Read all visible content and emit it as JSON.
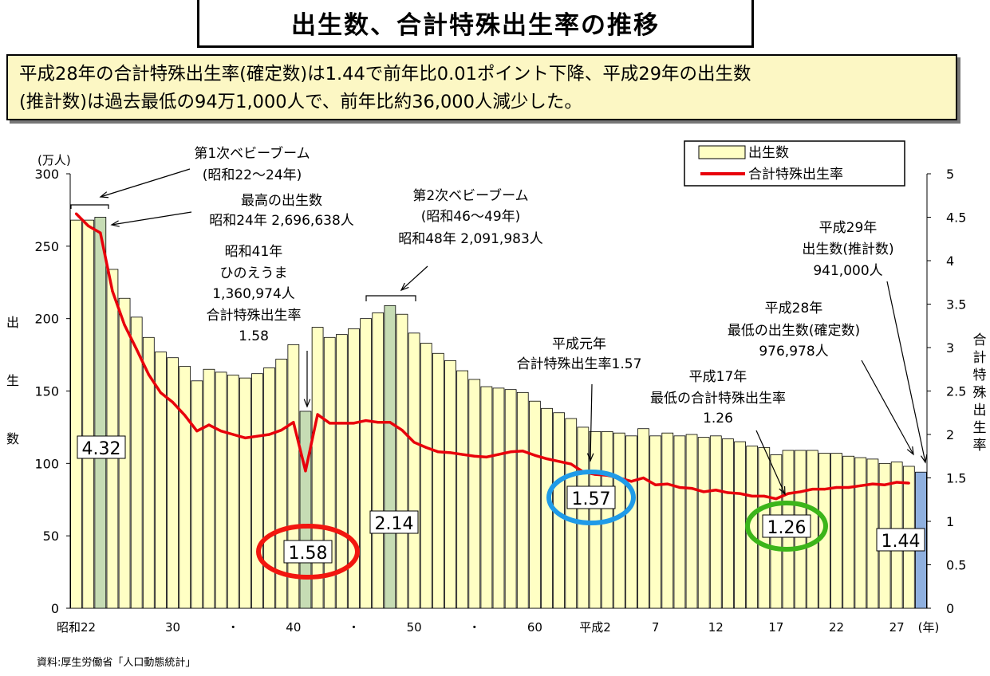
{
  "title": "出生数、合計特殊出生率の推移",
  "summary": {
    "line1": "平成28年の合計特殊出生率(確定数)は1.44で前年比0.01ポイント下降、平成29年の出生数",
    "line2": "(推計数)は過去最低の94万1,000人で、前年比約36,000人減少した。"
  },
  "source": "資料:厚生労働省「人口動態統計」",
  "colors": {
    "bar": "#ffffc4",
    "bar_highlight": "#c6dcb4",
    "bar_latest": "#8fb0df",
    "rate_line": "#e8000b",
    "circle_red": "#f2160f",
    "circle_blue": "#1f9be8",
    "circle_green": "#3cb51a"
  },
  "chart_data": {
    "type": "bar",
    "x_years": [
      "S22",
      "S23",
      "S24",
      "S25",
      "S26",
      "S27",
      "S28",
      "S29",
      "S30",
      "S31",
      "S32",
      "S33",
      "S34",
      "S35",
      "S36",
      "S37",
      "S38",
      "S39",
      "S40",
      "S41",
      "S42",
      "S43",
      "S44",
      "S45",
      "S46",
      "S47",
      "S48",
      "S49",
      "S50",
      "S51",
      "S52",
      "S53",
      "S54",
      "S55",
      "S56",
      "S57",
      "S58",
      "S59",
      "S60",
      "S61",
      "S62",
      "S63",
      "H1",
      "H2",
      "H3",
      "H4",
      "H5",
      "H6",
      "H7",
      "H8",
      "H9",
      "H10",
      "H11",
      "H12",
      "H13",
      "H14",
      "H15",
      "H16",
      "H17",
      "H18",
      "H19",
      "H20",
      "H21",
      "H22",
      "H23",
      "H24",
      "H25",
      "H26",
      "H27",
      "H28",
      "H29"
    ],
    "series": [
      {
        "name": "出生数",
        "axis": "left",
        "unit": "万人",
        "values": [
          268,
          268,
          270,
          234,
          214,
          201,
          187,
          177,
          173,
          167,
          157,
          165,
          163,
          161,
          159,
          162,
          166,
          172,
          182,
          136,
          194,
          187,
          189,
          193,
          200,
          204,
          209,
          203,
          190,
          183,
          176,
          171,
          164,
          158,
          153,
          152,
          151,
          149,
          143,
          138,
          135,
          131,
          125,
          122,
          122,
          121,
          119,
          124,
          119,
          121,
          119,
          120,
          118,
          119,
          117,
          115,
          112,
          111,
          106,
          109,
          109,
          109,
          107,
          107,
          105,
          104,
          103,
          100,
          101,
          98,
          94
        ]
      },
      {
        "name": "合計特殊出生率",
        "axis": "right",
        "values": [
          4.54,
          4.4,
          4.32,
          3.65,
          3.26,
          2.98,
          2.69,
          2.48,
          2.37,
          2.22,
          2.04,
          2.11,
          2.04,
          2.0,
          1.96,
          1.98,
          2.0,
          2.05,
          2.14,
          1.58,
          2.23,
          2.13,
          2.13,
          2.13,
          2.16,
          2.14,
          2.14,
          2.05,
          1.91,
          1.85,
          1.8,
          1.79,
          1.77,
          1.75,
          1.74,
          1.77,
          1.8,
          1.81,
          1.76,
          1.72,
          1.69,
          1.66,
          1.57,
          1.54,
          1.53,
          1.5,
          1.46,
          1.5,
          1.42,
          1.43,
          1.39,
          1.38,
          1.34,
          1.36,
          1.33,
          1.32,
          1.29,
          1.29,
          1.26,
          1.32,
          1.34,
          1.37,
          1.37,
          1.39,
          1.39,
          1.41,
          1.43,
          1.42,
          1.45,
          1.44
        ]
      }
    ],
    "highlight_bars": [
      "S24",
      "S41",
      "S48"
    ],
    "latest_bar": "H29",
    "y_left": {
      "label_chars": [
        "出",
        "生",
        "数"
      ],
      "unit": "(万人)",
      "range": [
        0,
        300
      ],
      "ticks": [
        "0",
        "50",
        "100",
        "150",
        "200",
        "250",
        "300"
      ]
    },
    "y_right": {
      "label_chars": [
        "合",
        "計",
        "特",
        "殊",
        "出",
        "生",
        "率"
      ],
      "range": [
        0,
        5
      ],
      "ticks": [
        "0",
        "0.5",
        "1",
        "1.5",
        "2",
        "2.5",
        "3",
        "3.5",
        "4",
        "4.5",
        "5"
      ]
    },
    "x_ticks": [
      {
        "label": "昭和22",
        "at": "S22"
      },
      {
        "label": "30",
        "at": "S30"
      },
      {
        "label": "・",
        "at": "S35"
      },
      {
        "label": "40",
        "at": "S40"
      },
      {
        "label": "・",
        "at": "S45"
      },
      {
        "label": "50",
        "at": "S50"
      },
      {
        "label": "・",
        "at": "S55"
      },
      {
        "label": "60",
        "at": "S60"
      },
      {
        "label": "平成2",
        "at": "H2"
      },
      {
        "label": "7",
        "at": "H7"
      },
      {
        "label": "12",
        "at": "H12"
      },
      {
        "label": "17",
        "at": "H17"
      },
      {
        "label": "22",
        "at": "H22"
      },
      {
        "label": "27",
        "at": "H27"
      }
    ],
    "x_unit": "(年)",
    "legend": [
      {
        "label": "出生数",
        "kind": "bar"
      },
      {
        "label": "合計特殊出生率",
        "kind": "line"
      }
    ],
    "value_boxes": [
      {
        "text": "4.32",
        "at": "S24"
      },
      {
        "text": "1.58",
        "at": "S41",
        "circle": "red"
      },
      {
        "text": "2.14",
        "at": "S48"
      },
      {
        "text": "1.57",
        "at": "H1",
        "circle": "blue"
      },
      {
        "text": "1.26",
        "at": "H17",
        "circle": "green"
      },
      {
        "text": "1.44",
        "at": "H28"
      }
    ],
    "annotations": [
      {
        "id": "boom1",
        "lines": [
          "第1次ベビーブーム",
          "(昭和22～24年)"
        ]
      },
      {
        "id": "max",
        "lines": [
          "最高の出生数",
          "昭和24年 2,696,638人"
        ]
      },
      {
        "id": "hinoe",
        "lines": [
          "昭和41年",
          "ひのえうま",
          "1,360,974人",
          "合計特殊出生率",
          "1.58"
        ]
      },
      {
        "id": "boom2",
        "lines": [
          "第2次ベビーブーム",
          "(昭和46～49年)",
          "昭和48年 2,091,983人"
        ]
      },
      {
        "id": "h1",
        "lines": [
          "平成元年",
          "合計特殊出生率1.57"
        ]
      },
      {
        "id": "h17",
        "lines": [
          "平成17年",
          "最低の合計特殊出生率",
          "1.26"
        ]
      },
      {
        "id": "h28",
        "lines": [
          "平成28年",
          "最低の出生数(確定数)",
          "976,978人"
        ]
      },
      {
        "id": "h29",
        "lines": [
          "平成29年",
          "出生数(推計数)",
          "941,000人"
        ]
      }
    ]
  }
}
